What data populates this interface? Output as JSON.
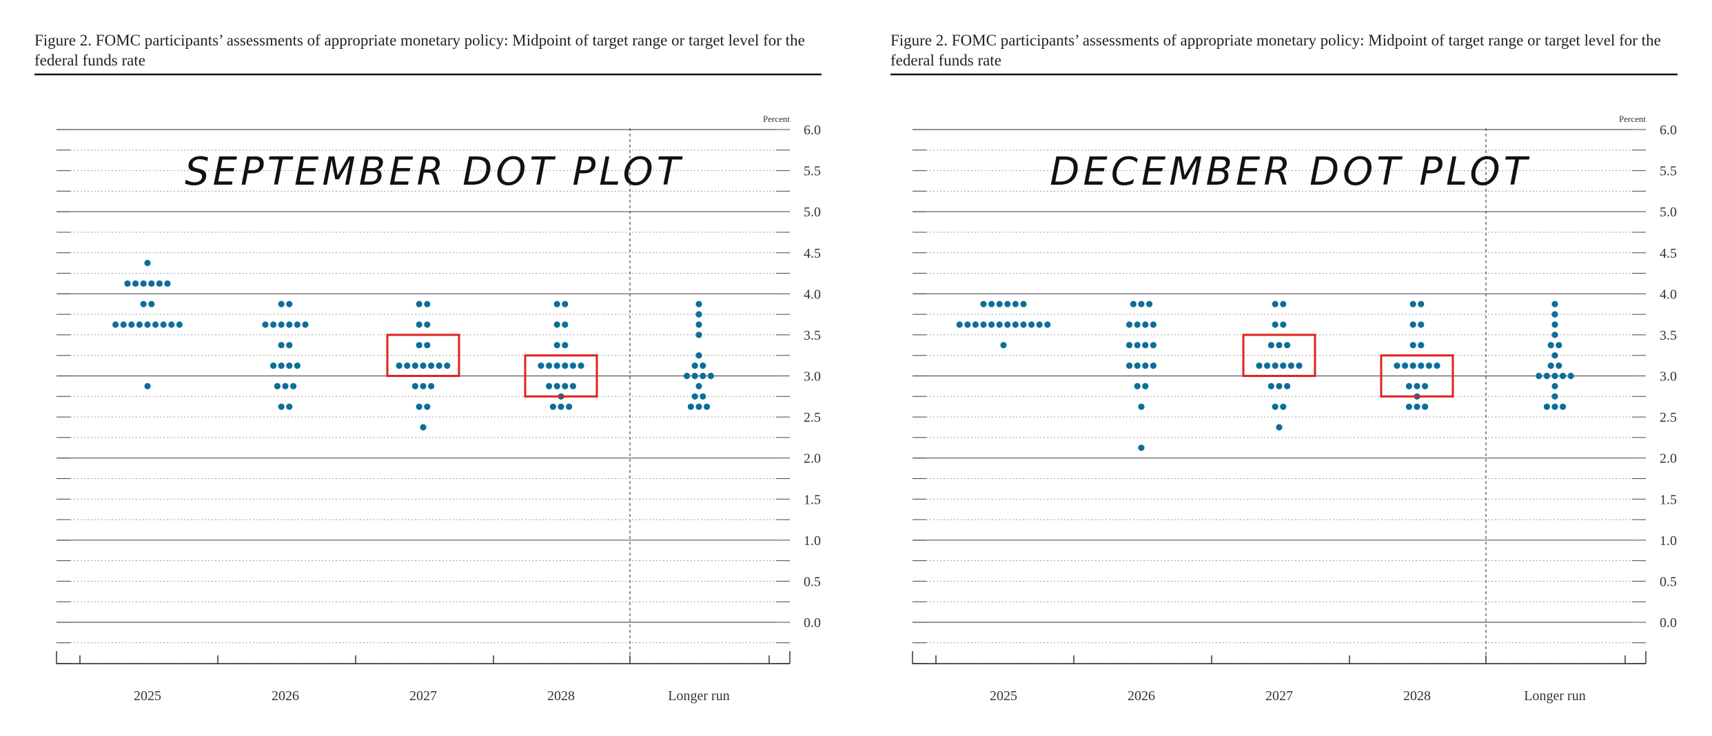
{
  "colors": {
    "dot": "#0e6e99",
    "highlight": "#e02020",
    "axis": "#333333"
  },
  "panels": [
    {
      "title": "Figure 2. FOMC participants’ assessments of appropriate monetary policy: Midpoint of target range or target level for the federal funds rate",
      "overlay": "SEPTEMBER DOT PLOT"
    },
    {
      "title": "Figure 2. FOMC participants’ assessments of appropriate monetary policy: Midpoint of target range or target level for the federal funds rate",
      "overlay": "DECEMBER DOT PLOT"
    }
  ],
  "chart_data": [
    {
      "type": "scatter",
      "title": "Figure 2. FOMC participants’ assessments of appropriate monetary policy: Midpoint of target range or target level for the federal funds rate",
      "annotation": "SEPTEMBER DOT PLOT",
      "ylabel": "Percent",
      "ylim": [
        0.0,
        6.0
      ],
      "yticks": [
        "0.0",
        "0.5",
        "1.0",
        "1.5",
        "2.0",
        "2.5",
        "3.0",
        "3.5",
        "4.0",
        "4.5",
        "5.0",
        "5.5",
        "6.0"
      ],
      "categories": [
        "2025",
        "2026",
        "2027",
        "2028",
        "Longer run"
      ],
      "grid": true,
      "dots": [
        {
          "category": "2025",
          "counts": [
            [
              4.375,
              1
            ],
            [
              4.125,
              6
            ],
            [
              3.875,
              2
            ],
            [
              3.625,
              9
            ],
            [
              2.875,
              1
            ]
          ]
        },
        {
          "category": "2026",
          "counts": [
            [
              3.875,
              2
            ],
            [
              3.625,
              6
            ],
            [
              3.375,
              2
            ],
            [
              3.125,
              4
            ],
            [
              2.875,
              3
            ],
            [
              2.625,
              2
            ]
          ]
        },
        {
          "category": "2027",
          "counts": [
            [
              3.875,
              2
            ],
            [
              3.625,
              2
            ],
            [
              3.375,
              2
            ],
            [
              3.125,
              7
            ],
            [
              2.875,
              3
            ],
            [
              2.625,
              2
            ],
            [
              2.375,
              1
            ]
          ]
        },
        {
          "category": "2028",
          "counts": [
            [
              3.875,
              2
            ],
            [
              3.625,
              2
            ],
            [
              3.375,
              2
            ],
            [
              3.125,
              6
            ],
            [
              2.875,
              4
            ],
            [
              2.75,
              1
            ],
            [
              2.625,
              3
            ]
          ]
        },
        {
          "category": "Longer run",
          "counts": [
            [
              3.875,
              1
            ],
            [
              3.75,
              1
            ],
            [
              3.625,
              1
            ],
            [
              3.5,
              1
            ],
            [
              3.25,
              1
            ],
            [
              3.125,
              2
            ],
            [
              3.0,
              4
            ],
            [
              2.875,
              1
            ],
            [
              2.75,
              2
            ],
            [
              2.625,
              3
            ]
          ]
        }
      ],
      "highlights": [
        {
          "category": "2027",
          "range": [
            3.0,
            3.5
          ]
        },
        {
          "category": "2028",
          "range": [
            2.75,
            3.25
          ]
        }
      ]
    },
    {
      "type": "scatter",
      "title": "Figure 2. FOMC participants’ assessments of appropriate monetary policy: Midpoint of target range or target level for the federal funds rate",
      "annotation": "DECEMBER DOT PLOT",
      "ylabel": "Percent",
      "ylim": [
        0.0,
        6.0
      ],
      "yticks": [
        "0.0",
        "0.5",
        "1.0",
        "1.5",
        "2.0",
        "2.5",
        "3.0",
        "3.5",
        "4.0",
        "4.5",
        "5.0",
        "5.5",
        "6.0"
      ],
      "categories": [
        "2025",
        "2026",
        "2027",
        "2028",
        "Longer run"
      ],
      "grid": true,
      "dots": [
        {
          "category": "2025",
          "counts": [
            [
              3.875,
              6
            ],
            [
              3.625,
              12
            ],
            [
              3.375,
              1
            ]
          ]
        },
        {
          "category": "2026",
          "counts": [
            [
              3.875,
              3
            ],
            [
              3.625,
              4
            ],
            [
              3.375,
              4
            ],
            [
              3.125,
              4
            ],
            [
              2.875,
              2
            ],
            [
              2.625,
              1
            ],
            [
              2.125,
              1
            ]
          ]
        },
        {
          "category": "2027",
          "counts": [
            [
              3.875,
              2
            ],
            [
              3.625,
              2
            ],
            [
              3.375,
              3
            ],
            [
              3.125,
              6
            ],
            [
              2.875,
              3
            ],
            [
              2.625,
              2
            ],
            [
              2.375,
              1
            ]
          ]
        },
        {
          "category": "2028",
          "counts": [
            [
              3.875,
              2
            ],
            [
              3.625,
              2
            ],
            [
              3.375,
              2
            ],
            [
              3.125,
              6
            ],
            [
              2.875,
              3
            ],
            [
              2.75,
              1
            ],
            [
              2.625,
              3
            ]
          ]
        },
        {
          "category": "Longer run",
          "counts": [
            [
              3.875,
              1
            ],
            [
              3.75,
              1
            ],
            [
              3.625,
              1
            ],
            [
              3.5,
              1
            ],
            [
              3.375,
              2
            ],
            [
              3.25,
              1
            ],
            [
              3.125,
              2
            ],
            [
              3.0,
              5
            ],
            [
              2.875,
              1
            ],
            [
              2.75,
              1
            ],
            [
              2.625,
              3
            ]
          ]
        }
      ],
      "highlights": [
        {
          "category": "2027",
          "range": [
            3.0,
            3.5
          ]
        },
        {
          "category": "2028",
          "range": [
            2.75,
            3.25
          ]
        }
      ]
    }
  ]
}
